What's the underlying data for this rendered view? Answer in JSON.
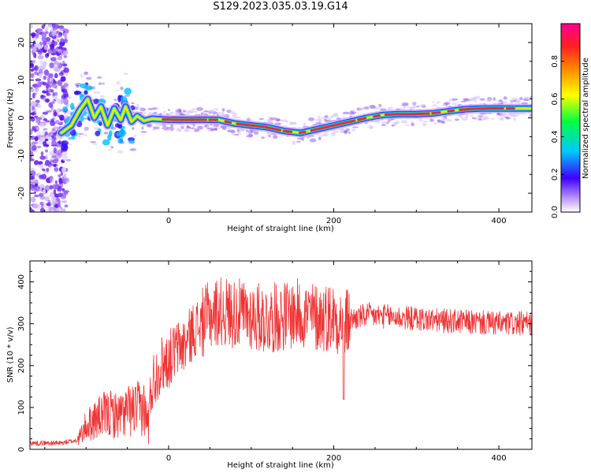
{
  "title": "S129.2023.035.03.19.G14",
  "colors": {
    "snr_line": "#ee3333",
    "track_core": "#e8283c",
    "axis": "#000000"
  },
  "spectrogram": {
    "chart_data": {
      "type": "heatmap",
      "xlabel": "Height of straight line (km)",
      "ylabel": "Frequency (Hz)",
      "xlim": [
        -168,
        440
      ],
      "ylim": [
        -25,
        25
      ],
      "xticks": [
        0,
        200,
        400
      ],
      "yticks": [
        20,
        10,
        0,
        -10,
        -20
      ],
      "track": [
        {
          "x": -130,
          "y": -4
        },
        {
          "x": -118,
          "y": -2
        },
        {
          "x": -108,
          "y": 2
        },
        {
          "x": -98,
          "y": 5
        },
        {
          "x": -90,
          "y": 0
        },
        {
          "x": -82,
          "y": 3
        },
        {
          "x": -74,
          "y": -2
        },
        {
          "x": -66,
          "y": 2.5
        },
        {
          "x": -58,
          "y": -0.5
        },
        {
          "x": -52,
          "y": 3
        },
        {
          "x": -45,
          "y": -1
        },
        {
          "x": -38,
          "y": 0.5
        },
        {
          "x": -30,
          "y": -0.8
        },
        {
          "x": -20,
          "y": -0.2
        },
        {
          "x": 0,
          "y": -0.5
        },
        {
          "x": 30,
          "y": -0.5
        },
        {
          "x": 60,
          "y": -0.5
        },
        {
          "x": 80,
          "y": -1.5
        },
        {
          "x": 100,
          "y": -2
        },
        {
          "x": 120,
          "y": -2.5
        },
        {
          "x": 140,
          "y": -3.5
        },
        {
          "x": 160,
          "y": -4
        },
        {
          "x": 180,
          "y": -3
        },
        {
          "x": 200,
          "y": -2
        },
        {
          "x": 220,
          "y": -1
        },
        {
          "x": 240,
          "y": 0
        },
        {
          "x": 260,
          "y": 0.8
        },
        {
          "x": 280,
          "y": 1
        },
        {
          "x": 300,
          "y": 1
        },
        {
          "x": 320,
          "y": 1.2
        },
        {
          "x": 340,
          "y": 1.8
        },
        {
          "x": 360,
          "y": 2.3
        },
        {
          "x": 380,
          "y": 2.5
        },
        {
          "x": 400,
          "y": 2.5
        },
        {
          "x": 420,
          "y": 2.5
        },
        {
          "x": 440,
          "y": 2.5
        }
      ]
    }
  },
  "colorbar": {
    "label": "Normalized spectral amplitude",
    "ticks": [
      "0.0",
      "0.2",
      "0.4",
      "0.6",
      "0.8"
    ],
    "range": [
      0,
      1
    ]
  },
  "snr_panel": {
    "chart_data": {
      "type": "line",
      "xlabel": "Height of straight line (km)",
      "ylabel": "SNR (10 * v/v)",
      "xlim": [
        -168,
        440
      ],
      "ylim": [
        0,
        450
      ],
      "xticks": [
        0,
        200,
        400
      ],
      "yticks": [
        0,
        100,
        200,
        300,
        400
      ],
      "series": [
        {
          "values_xy": [
            [
              -168,
              15
            ],
            [
              -150,
              15
            ],
            [
              -130,
              15
            ],
            [
              -110,
              22
            ],
            [
              -100,
              55
            ],
            [
              -90,
              70
            ],
            [
              -80,
              80
            ],
            [
              -70,
              85
            ],
            [
              -60,
              80
            ],
            [
              -50,
              90
            ],
            [
              -40,
              95
            ],
            [
              -30,
              100
            ],
            [
              -25,
              60
            ],
            [
              -20,
              160
            ],
            [
              -10,
              200
            ],
            [
              0,
              215
            ],
            [
              10,
              240
            ],
            [
              20,
              250
            ],
            [
              30,
              285
            ],
            [
              40,
              300
            ],
            [
              50,
              320
            ],
            [
              60,
              330
            ],
            [
              80,
              325
            ],
            [
              100,
              320
            ],
            [
              120,
              310
            ],
            [
              140,
              320
            ],
            [
              160,
              325
            ],
            [
              180,
              315
            ],
            [
              200,
              318
            ],
            [
              215,
              300
            ],
            [
              220,
              310
            ],
            [
              240,
              320
            ],
            [
              260,
              318
            ],
            [
              280,
              315
            ],
            [
              300,
              312
            ],
            [
              320,
              308
            ],
            [
              340,
              306
            ],
            [
              360,
              304
            ],
            [
              380,
              302
            ],
            [
              400,
              300
            ],
            [
              420,
              300
            ],
            [
              440,
              300
            ]
          ]
        }
      ]
    }
  }
}
